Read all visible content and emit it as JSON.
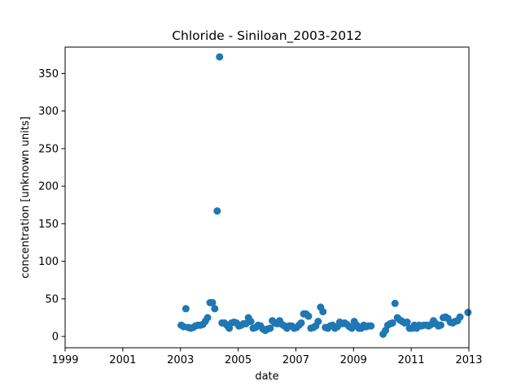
{
  "chart_data": {
    "type": "scatter",
    "title": "Chloride - Siniloan_2003-2012",
    "xlabel": "date",
    "ylabel": "concentration [unknown units]",
    "xlim": [
      "1999-01-01",
      "2013-01-01"
    ],
    "ylim": [
      -15,
      385
    ],
    "x_ticks": [
      "1999",
      "2001",
      "2003",
      "2005",
      "2007",
      "2009",
      "2011",
      "2013"
    ],
    "y_ticks": [
      0,
      50,
      100,
      150,
      200,
      250,
      300,
      350
    ],
    "grid": false,
    "marker_color": "#1f77b4",
    "series": [
      {
        "points": [
          [
            "2003-01-10",
            15
          ],
          [
            "2003-02-10",
            13
          ],
          [
            "2003-03-10",
            37
          ],
          [
            "2003-04-10",
            12
          ],
          [
            "2003-05-10",
            11
          ],
          [
            "2003-06-10",
            12
          ],
          [
            "2003-07-10",
            14
          ],
          [
            "2003-08-10",
            15
          ],
          [
            "2003-09-10",
            15
          ],
          [
            "2003-10-10",
            16
          ],
          [
            "2003-11-10",
            20
          ],
          [
            "2003-12-10",
            25
          ],
          [
            "2004-01-10",
            45
          ],
          [
            "2004-02-10",
            45
          ],
          [
            "2004-03-10",
            37
          ],
          [
            "2004-04-10",
            167
          ],
          [
            "2004-05-10",
            372
          ],
          [
            "2004-06-10",
            18
          ],
          [
            "2004-07-10",
            18
          ],
          [
            "2004-08-10",
            15
          ],
          [
            "2004-09-10",
            11
          ],
          [
            "2004-10-10",
            18
          ],
          [
            "2004-11-10",
            19
          ],
          [
            "2004-12-10",
            18
          ],
          [
            "2005-01-10",
            14
          ],
          [
            "2005-02-10",
            15
          ],
          [
            "2005-03-10",
            17
          ],
          [
            "2005-04-10",
            17
          ],
          [
            "2005-05-10",
            25
          ],
          [
            "2005-06-10",
            20
          ],
          [
            "2005-07-10",
            11
          ],
          [
            "2005-08-10",
            12
          ],
          [
            "2005-09-10",
            15
          ],
          [
            "2005-10-10",
            14
          ],
          [
            "2005-11-10",
            10
          ],
          [
            "2005-12-10",
            8
          ],
          [
            "2006-01-10",
            10
          ],
          [
            "2006-02-10",
            11
          ],
          [
            "2006-03-10",
            21
          ],
          [
            "2006-04-10",
            18
          ],
          [
            "2006-05-10",
            17
          ],
          [
            "2006-06-10",
            21
          ],
          [
            "2006-07-10",
            16
          ],
          [
            "2006-08-10",
            14
          ],
          [
            "2006-09-10",
            11
          ],
          [
            "2006-10-10",
            14
          ],
          [
            "2006-11-10",
            14
          ],
          [
            "2006-12-10",
            11
          ],
          [
            "2007-01-10",
            12
          ],
          [
            "2007-02-10",
            15
          ],
          [
            "2007-03-10",
            18
          ],
          [
            "2007-04-10",
            30
          ],
          [
            "2007-05-10",
            30
          ],
          [
            "2007-06-10",
            27
          ],
          [
            "2007-07-10",
            11
          ],
          [
            "2007-08-10",
            12
          ],
          [
            "2007-09-10",
            14
          ],
          [
            "2007-10-10",
            20
          ],
          [
            "2007-11-10",
            39
          ],
          [
            "2007-12-10",
            33
          ],
          [
            "2008-01-10",
            12
          ],
          [
            "2008-02-10",
            11
          ],
          [
            "2008-03-10",
            14
          ],
          [
            "2008-04-10",
            15
          ],
          [
            "2008-05-10",
            11
          ],
          [
            "2008-06-10",
            13
          ],
          [
            "2008-07-10",
            19
          ],
          [
            "2008-08-10",
            17
          ],
          [
            "2008-09-10",
            18
          ],
          [
            "2008-10-10",
            16
          ],
          [
            "2008-11-10",
            13
          ],
          [
            "2008-12-10",
            11
          ],
          [
            "2009-01-10",
            20
          ],
          [
            "2009-02-10",
            15
          ],
          [
            "2009-03-10",
            11
          ],
          [
            "2009-04-10",
            11
          ],
          [
            "2009-05-10",
            15
          ],
          [
            "2009-06-10",
            13
          ],
          [
            "2009-07-10",
            14
          ],
          [
            "2009-08-10",
            14
          ],
          [
            "2010-01-10",
            3
          ],
          [
            "2010-02-10",
            8
          ],
          [
            "2010-03-10",
            15
          ],
          [
            "2010-04-10",
            17
          ],
          [
            "2010-05-10",
            18
          ],
          [
            "2010-06-10",
            44
          ],
          [
            "2010-07-10",
            25
          ],
          [
            "2010-08-10",
            22
          ],
          [
            "2010-09-10",
            20
          ],
          [
            "2010-10-10",
            18
          ],
          [
            "2010-11-10",
            19
          ],
          [
            "2010-12-10",
            11
          ],
          [
            "2011-01-10",
            11
          ],
          [
            "2011-02-10",
            15
          ],
          [
            "2011-03-10",
            11
          ],
          [
            "2011-04-10",
            15
          ],
          [
            "2011-05-10",
            14
          ],
          [
            "2011-06-10",
            15
          ],
          [
            "2011-07-10",
            15
          ],
          [
            "2011-08-10",
            14
          ],
          [
            "2011-09-10",
            16
          ],
          [
            "2011-10-10",
            21
          ],
          [
            "2011-11-10",
            17
          ],
          [
            "2011-12-10",
            14
          ],
          [
            "2012-01-10",
            15
          ],
          [
            "2012-02-10",
            25
          ],
          [
            "2012-03-10",
            26
          ],
          [
            "2012-04-10",
            24
          ],
          [
            "2012-05-10",
            19
          ],
          [
            "2012-06-10",
            18
          ],
          [
            "2012-07-10",
            20
          ],
          [
            "2012-08-10",
            21
          ],
          [
            "2012-09-10",
            26
          ],
          [
            "2012-12-20",
            32
          ]
        ]
      }
    ]
  }
}
